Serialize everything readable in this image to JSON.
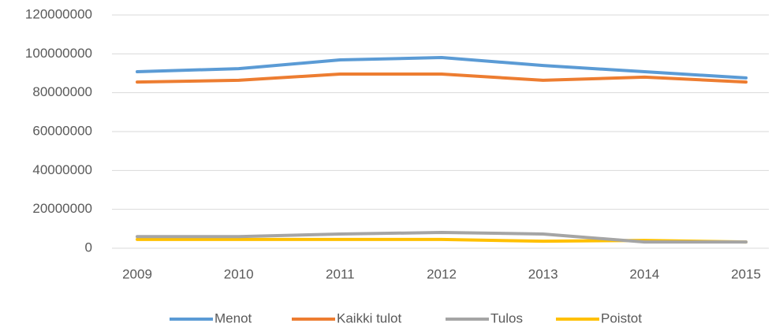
{
  "chart_data": {
    "type": "line",
    "categories": [
      "2009",
      "2010",
      "2011",
      "2012",
      "2013",
      "2014",
      "2015"
    ],
    "series": [
      {
        "name": "Menot",
        "color": "#5b9bd5",
        "values": [
          90800000,
          92400000,
          96900000,
          98100000,
          94000000,
          90800000,
          87600000
        ]
      },
      {
        "name": "Kaikki tulot",
        "color": "#ed7d31",
        "values": [
          85500000,
          86400000,
          89600000,
          89600000,
          86400000,
          88000000,
          85500000
        ]
      },
      {
        "name": "Tulos",
        "color": "#a5a5a5",
        "values": [
          6000000,
          6000000,
          7300000,
          8100000,
          7300000,
          3200000,
          3200000
        ]
      },
      {
        "name": "Poistot",
        "color": "#ffc000",
        "values": [
          4500000,
          4500000,
          4500000,
          4500000,
          3600000,
          4000000,
          3200000
        ]
      }
    ],
    "ylim": [
      0,
      120000000
    ],
    "yticks": [
      0,
      20000000,
      40000000,
      60000000,
      80000000,
      100000000,
      120000000
    ],
    "grid": true,
    "legend": "bottom"
  }
}
